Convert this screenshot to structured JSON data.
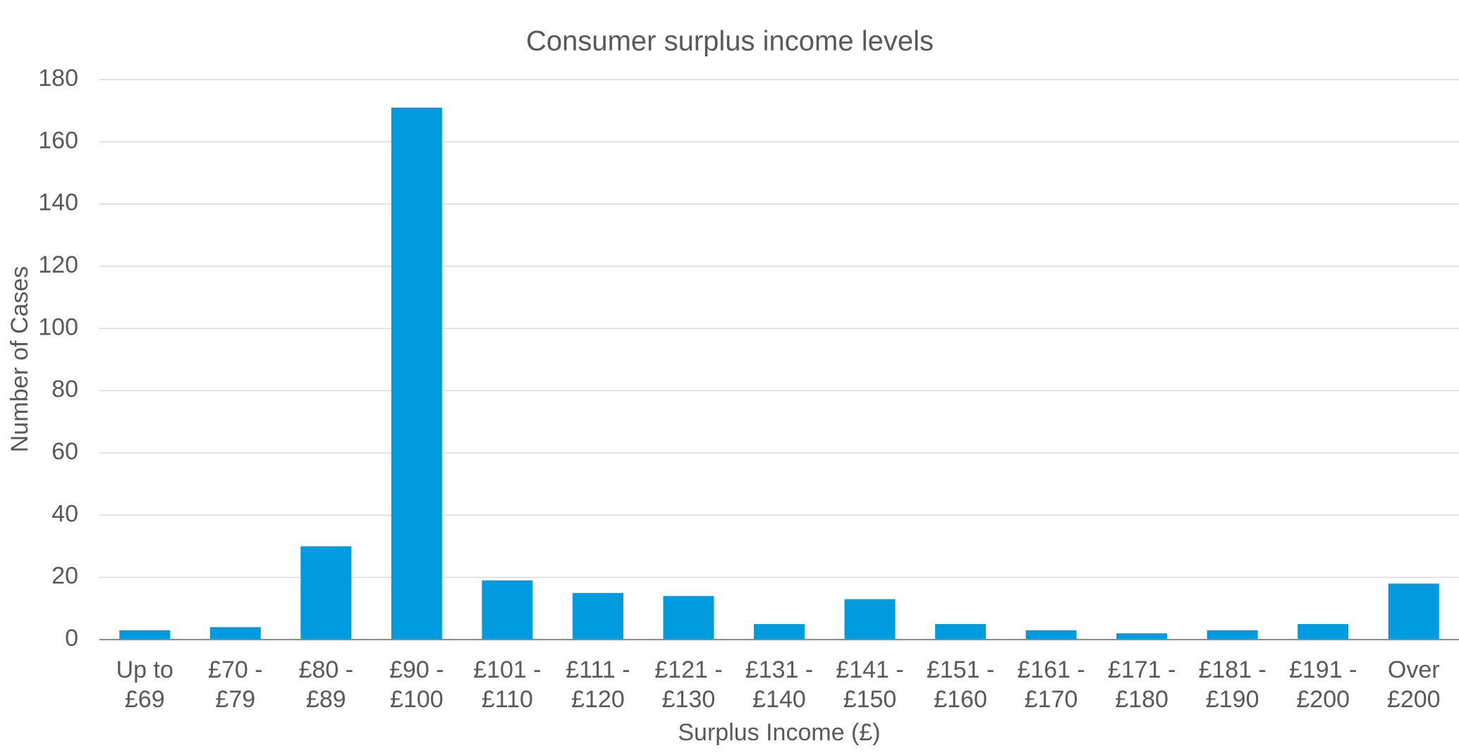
{
  "chart_data": {
    "type": "bar",
    "title": "Consumer surplus income levels",
    "x_label": "Surplus Income (£)",
    "y_label": "Number of Cases",
    "categories": [
      "Up to £69",
      "£70 - £79",
      "£80 - £89",
      "£90 - £100",
      "£101 - £110",
      "£111 - £120",
      "£121 - £130",
      "£131 - £140",
      "£141 - £150",
      "£151 - £160",
      "£161 - £170",
      "£171 - £180",
      "£181 - £190",
      "£191 - £200",
      "Over £200"
    ],
    "values": [
      3,
      4,
      30,
      171,
      19,
      15,
      14,
      5,
      13,
      5,
      3,
      2,
      3,
      5,
      18
    ],
    "color": "#009ade",
    "ylim": [
      0,
      180
    ],
    "yticks": [
      0,
      20,
      40,
      60,
      80,
      100,
      120,
      140,
      160,
      180
    ],
    "grid": true
  }
}
